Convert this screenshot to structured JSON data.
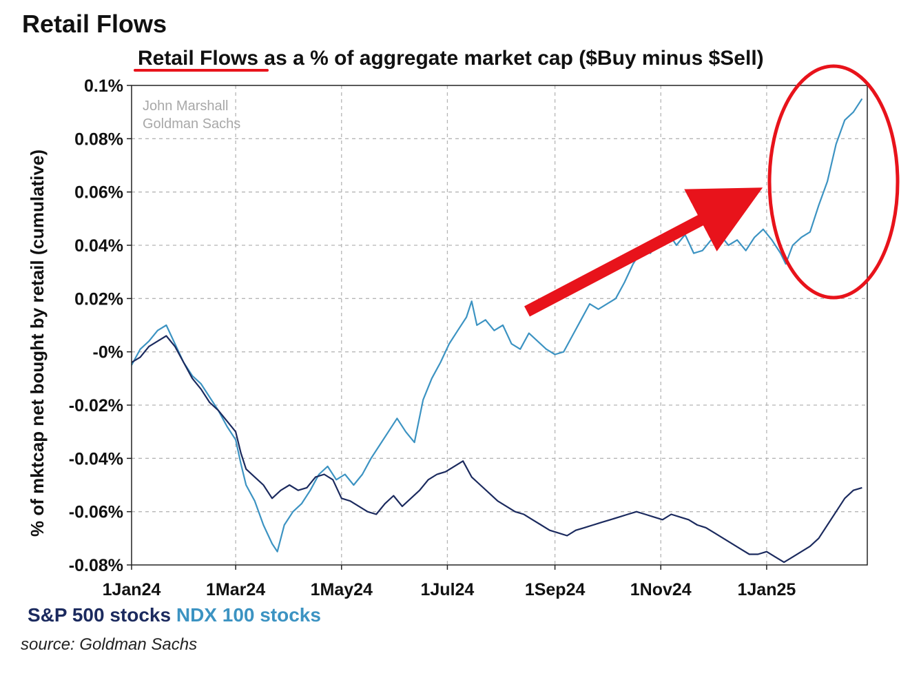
{
  "heading": "Retail Flows",
  "source": "source: Goldman Sachs",
  "colors": {
    "sp500": "#1b2a5e",
    "ndx100": "#3c93c2",
    "annotation": "#e8131b",
    "grid": "#b5b5b5"
  },
  "chart_data": {
    "type": "line",
    "title_underlined": "Retail Flows",
    "title_rest": " as a % of aggregate market cap ($Buy minus $Sell)",
    "ylabel": "% of mktcap net bought by retail (cumulative)",
    "watermark": [
      "John Marshall",
      "Goldman Sachs"
    ],
    "x_ticks": [
      "1Jan24",
      "1Mar24",
      "1May24",
      "1Jul24",
      "1Sep24",
      "1Nov24",
      "1Jan25"
    ],
    "x_tick_dates": [
      "2024-01-01",
      "2024-03-01",
      "2024-05-01",
      "2024-07-01",
      "2024-09-01",
      "2024-11-01",
      "2025-01-01"
    ],
    "xlim": [
      "2024-01-01",
      "2025-02-28"
    ],
    "y_ticks": [
      "-0.08%",
      "-0.06%",
      "-0.04%",
      "-0.02%",
      "-0%",
      "0.02%",
      "0.04%",
      "0.06%",
      "0.08%",
      "0.1%"
    ],
    "y_tick_values": [
      -0.08,
      -0.06,
      -0.04,
      -0.02,
      0,
      0.02,
      0.04,
      0.06,
      0.08,
      0.1
    ],
    "ylim": [
      -0.08,
      0.1
    ],
    "grid": true,
    "legend_placement": "bottom-left",
    "series": [
      {
        "name": "S&P 500 stocks",
        "points": [
          [
            "2024-01-01",
            -0.004
          ],
          [
            "2024-01-06",
            -0.002
          ],
          [
            "2024-01-11",
            0.002
          ],
          [
            "2024-01-16",
            0.004
          ],
          [
            "2024-01-21",
            0.006
          ],
          [
            "2024-01-26",
            0.002
          ],
          [
            "2024-01-31",
            -0.004
          ],
          [
            "2024-02-05",
            -0.01
          ],
          [
            "2024-02-10",
            -0.014
          ],
          [
            "2024-02-15",
            -0.019
          ],
          [
            "2024-02-20",
            -0.022
          ],
          [
            "2024-02-25",
            -0.026
          ],
          [
            "2024-03-01",
            -0.03
          ],
          [
            "2024-03-04",
            -0.038
          ],
          [
            "2024-03-07",
            -0.044
          ],
          [
            "2024-03-12",
            -0.047
          ],
          [
            "2024-03-17",
            -0.05
          ],
          [
            "2024-03-22",
            -0.055
          ],
          [
            "2024-03-27",
            -0.052
          ],
          [
            "2024-04-01",
            -0.05
          ],
          [
            "2024-04-06",
            -0.052
          ],
          [
            "2024-04-11",
            -0.051
          ],
          [
            "2024-04-16",
            -0.047
          ],
          [
            "2024-04-21",
            -0.046
          ],
          [
            "2024-04-26",
            -0.048
          ],
          [
            "2024-05-01",
            -0.055
          ],
          [
            "2024-05-06",
            -0.056
          ],
          [
            "2024-05-11",
            -0.058
          ],
          [
            "2024-05-16",
            -0.06
          ],
          [
            "2024-05-21",
            -0.061
          ],
          [
            "2024-05-26",
            -0.057
          ],
          [
            "2024-05-31",
            -0.054
          ],
          [
            "2024-06-05",
            -0.058
          ],
          [
            "2024-06-10",
            -0.055
          ],
          [
            "2024-06-15",
            -0.052
          ],
          [
            "2024-06-20",
            -0.048
          ],
          [
            "2024-06-25",
            -0.046
          ],
          [
            "2024-06-30",
            -0.045
          ],
          [
            "2024-07-05",
            -0.043
          ],
          [
            "2024-07-10",
            -0.041
          ],
          [
            "2024-07-15",
            -0.047
          ],
          [
            "2024-07-20",
            -0.05
          ],
          [
            "2024-07-25",
            -0.053
          ],
          [
            "2024-07-30",
            -0.056
          ],
          [
            "2024-08-04",
            -0.058
          ],
          [
            "2024-08-09",
            -0.06
          ],
          [
            "2024-08-14",
            -0.061
          ],
          [
            "2024-08-19",
            -0.063
          ],
          [
            "2024-08-24",
            -0.065
          ],
          [
            "2024-08-29",
            -0.067
          ],
          [
            "2024-09-03",
            -0.068
          ],
          [
            "2024-09-08",
            -0.069
          ],
          [
            "2024-09-13",
            -0.067
          ],
          [
            "2024-09-18",
            -0.066
          ],
          [
            "2024-09-23",
            -0.065
          ],
          [
            "2024-09-28",
            -0.064
          ],
          [
            "2024-10-03",
            -0.063
          ],
          [
            "2024-10-08",
            -0.062
          ],
          [
            "2024-10-13",
            -0.061
          ],
          [
            "2024-10-18",
            -0.06
          ],
          [
            "2024-10-23",
            -0.061
          ],
          [
            "2024-10-28",
            -0.062
          ],
          [
            "2024-11-02",
            -0.063
          ],
          [
            "2024-11-07",
            -0.061
          ],
          [
            "2024-11-12",
            -0.062
          ],
          [
            "2024-11-17",
            -0.063
          ],
          [
            "2024-11-22",
            -0.065
          ],
          [
            "2024-11-27",
            -0.066
          ],
          [
            "2024-12-02",
            -0.068
          ],
          [
            "2024-12-07",
            -0.07
          ],
          [
            "2024-12-12",
            -0.072
          ],
          [
            "2024-12-17",
            -0.074
          ],
          [
            "2024-12-22",
            -0.076
          ],
          [
            "2024-12-27",
            -0.076
          ],
          [
            "2025-01-01",
            -0.075
          ],
          [
            "2025-01-06",
            -0.077
          ],
          [
            "2025-01-11",
            -0.079
          ],
          [
            "2025-01-16",
            -0.077
          ],
          [
            "2025-01-21",
            -0.075
          ],
          [
            "2025-01-26",
            -0.073
          ],
          [
            "2025-01-31",
            -0.07
          ],
          [
            "2025-02-05",
            -0.065
          ],
          [
            "2025-02-10",
            -0.06
          ],
          [
            "2025-02-15",
            -0.055
          ],
          [
            "2025-02-20",
            -0.052
          ],
          [
            "2025-02-25",
            -0.051
          ]
        ]
      },
      {
        "name": "NDX 100 stocks",
        "points": [
          [
            "2024-01-01",
            -0.005
          ],
          [
            "2024-01-06",
            0.001
          ],
          [
            "2024-01-11",
            0.004
          ],
          [
            "2024-01-16",
            0.008
          ],
          [
            "2024-01-21",
            0.01
          ],
          [
            "2024-01-26",
            0.003
          ],
          [
            "2024-01-31",
            -0.004
          ],
          [
            "2024-02-05",
            -0.009
          ],
          [
            "2024-02-10",
            -0.012
          ],
          [
            "2024-02-15",
            -0.017
          ],
          [
            "2024-02-20",
            -0.022
          ],
          [
            "2024-02-25",
            -0.028
          ],
          [
            "2024-03-01",
            -0.033
          ],
          [
            "2024-03-04",
            -0.042
          ],
          [
            "2024-03-07",
            -0.05
          ],
          [
            "2024-03-12",
            -0.056
          ],
          [
            "2024-03-17",
            -0.065
          ],
          [
            "2024-03-22",
            -0.072
          ],
          [
            "2024-03-25",
            -0.075
          ],
          [
            "2024-03-29",
            -0.065
          ],
          [
            "2024-04-03",
            -0.06
          ],
          [
            "2024-04-08",
            -0.057
          ],
          [
            "2024-04-13",
            -0.052
          ],
          [
            "2024-04-18",
            -0.046
          ],
          [
            "2024-04-23",
            -0.043
          ],
          [
            "2024-04-28",
            -0.048
          ],
          [
            "2024-05-03",
            -0.046
          ],
          [
            "2024-05-08",
            -0.05
          ],
          [
            "2024-05-13",
            -0.046
          ],
          [
            "2024-05-18",
            -0.04
          ],
          [
            "2024-05-23",
            -0.035
          ],
          [
            "2024-05-28",
            -0.03
          ],
          [
            "2024-06-02",
            -0.025
          ],
          [
            "2024-06-07",
            -0.03
          ],
          [
            "2024-06-12",
            -0.034
          ],
          [
            "2024-06-17",
            -0.018
          ],
          [
            "2024-06-22",
            -0.01
          ],
          [
            "2024-06-27",
            -0.004
          ],
          [
            "2024-07-02",
            0.003
          ],
          [
            "2024-07-07",
            0.008
          ],
          [
            "2024-07-12",
            0.013
          ],
          [
            "2024-07-15",
            0.019
          ],
          [
            "2024-07-18",
            0.01
          ],
          [
            "2024-07-23",
            0.012
          ],
          [
            "2024-07-28",
            0.008
          ],
          [
            "2024-08-02",
            0.01
          ],
          [
            "2024-08-07",
            0.003
          ],
          [
            "2024-08-12",
            0.001
          ],
          [
            "2024-08-17",
            0.007
          ],
          [
            "2024-08-22",
            0.004
          ],
          [
            "2024-08-27",
            0.001
          ],
          [
            "2024-09-01",
            -0.001
          ],
          [
            "2024-09-06",
            0.0
          ],
          [
            "2024-09-11",
            0.006
          ],
          [
            "2024-09-16",
            0.012
          ],
          [
            "2024-09-21",
            0.018
          ],
          [
            "2024-09-26",
            0.016
          ],
          [
            "2024-10-01",
            0.018
          ],
          [
            "2024-10-06",
            0.02
          ],
          [
            "2024-10-11",
            0.026
          ],
          [
            "2024-10-16",
            0.033
          ],
          [
            "2024-10-21",
            0.038
          ],
          [
            "2024-10-26",
            0.037
          ],
          [
            "2024-10-31",
            0.042
          ],
          [
            "2024-11-05",
            0.045
          ],
          [
            "2024-11-10",
            0.04
          ],
          [
            "2024-11-15",
            0.044
          ],
          [
            "2024-11-20",
            0.037
          ],
          [
            "2024-11-25",
            0.038
          ],
          [
            "2024-11-30",
            0.042
          ],
          [
            "2024-12-05",
            0.044
          ],
          [
            "2024-12-10",
            0.04
          ],
          [
            "2024-12-15",
            0.042
          ],
          [
            "2024-12-20",
            0.038
          ],
          [
            "2024-12-25",
            0.043
          ],
          [
            "2024-12-30",
            0.046
          ],
          [
            "2025-01-04",
            0.042
          ],
          [
            "2025-01-09",
            0.037
          ],
          [
            "2025-01-12",
            0.033
          ],
          [
            "2025-01-16",
            0.04
          ],
          [
            "2025-01-21",
            0.043
          ],
          [
            "2025-01-26",
            0.045
          ],
          [
            "2025-01-31",
            0.055
          ],
          [
            "2025-02-05",
            0.064
          ],
          [
            "2025-02-10",
            0.078
          ],
          [
            "2025-02-15",
            0.087
          ],
          [
            "2025-02-20",
            0.09
          ],
          [
            "2025-02-25",
            0.095
          ]
        ]
      }
    ]
  }
}
